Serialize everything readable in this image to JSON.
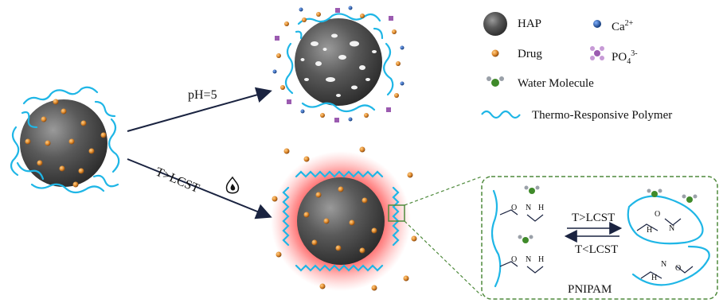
{
  "legend": {
    "hap": "HAP",
    "drug": "Drug",
    "water": "Water Molecule",
    "polymer": "Thermo-Responsive Polymer",
    "calcium_base": "Ca",
    "calcium_sup": "2+",
    "phosphate_base": "PO",
    "phosphate_sub": "4",
    "phosphate_sup": "3-"
  },
  "conditions": {
    "acid": "pH=5",
    "heat": "T>LCST"
  },
  "inset": {
    "forward": "T>LCST",
    "reverse": "T<LCST",
    "name": "PNIPAM",
    "atoms": {
      "oxygen": "O",
      "nitrogen": "N",
      "hydrogen": "H"
    }
  },
  "colors": {
    "polymer": "#1fb6e6",
    "arrow": "#1a2340",
    "drug": "#e08a2c",
    "calcium": "#1f4f9a",
    "phosphate": "#9b5bb0",
    "water_core": "#3f8a2a",
    "glow": "#ff2020",
    "inset_border": "#4f8a3c"
  },
  "icons": {
    "heat_icon": "flame-icon"
  }
}
